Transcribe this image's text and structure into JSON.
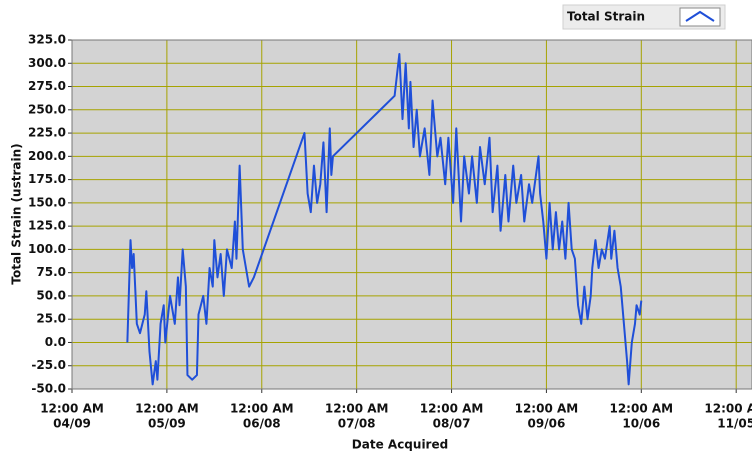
{
  "chart_data": {
    "type": "line",
    "ylabel": "Total Strain (ustrain)",
    "xlabel": "Date Acquired",
    "ylim": [
      -50,
      325
    ],
    "yticks": [
      {
        "value": -50,
        "label": "-50.0"
      },
      {
        "value": -25,
        "label": "-25.0"
      },
      {
        "value": 0,
        "label": "0.0"
      },
      {
        "value": 25,
        "label": "25.0"
      },
      {
        "value": 50,
        "label": "50.0"
      },
      {
        "value": 75,
        "label": "75.0"
      },
      {
        "value": 100,
        "label": "100.0"
      },
      {
        "value": 125,
        "label": "125.0"
      },
      {
        "value": 150,
        "label": "150.0"
      },
      {
        "value": 175,
        "label": "175.0"
      },
      {
        "value": 200,
        "label": "200.0"
      },
      {
        "value": 225,
        "label": "225.0"
      },
      {
        "value": 250,
        "label": "250.0"
      },
      {
        "value": 275,
        "label": "275.0"
      },
      {
        "value": 300,
        "label": "300.0"
      },
      {
        "value": 325,
        "label": "325.0"
      }
    ],
    "xlim": [
      "04/09 00:00",
      "11/10 00:00"
    ],
    "xticks": [
      {
        "value": "04/09 00:00",
        "label": [
          "12:00 AM",
          "04/09"
        ]
      },
      {
        "value": "05/09 00:00",
        "label": [
          "12:00 AM",
          "05/09"
        ]
      },
      {
        "value": "06/08 00:00",
        "label": [
          "12:00 AM",
          "06/08"
        ]
      },
      {
        "value": "07/08 00:00",
        "label": [
          "12:00 AM",
          "07/08"
        ]
      },
      {
        "value": "08/07 00:00",
        "label": [
          "12:00 AM",
          "08/07"
        ]
      },
      {
        "value": "09/06 00:00",
        "label": [
          "12:00 AM",
          "09/06"
        ]
      },
      {
        "value": "10/06 00:00",
        "label": [
          "12:00 AM",
          "10/06"
        ]
      },
      {
        "value": "11/05 00:00",
        "label": [
          "12:00 AM",
          "11/05"
        ]
      }
    ],
    "grid": true,
    "legend": "top-right",
    "series": [
      {
        "name": "Total Strain",
        "color": "#1f4fd8",
        "x": [
          "04/26 12:00",
          "04/27 12:00",
          "04/28 00:00",
          "04/28 12:00",
          "04/29 12:00",
          "04/30 12:00",
          "05/02 00:00",
          "05/02 12:00",
          "05/03 12:00",
          "05/04 12:00",
          "05/05 12:00",
          "05/06 00:00",
          "05/07 00:00",
          "05/08 00:00",
          "05/08 12:00",
          "05/10 00:00",
          "05/11 12:00",
          "05/12 12:00",
          "05/13 00:00",
          "05/14 00:00",
          "05/15 00:00",
          "05/15 12:00",
          "05/17 00:00",
          "05/18 12:00",
          "05/19 00:00",
          "05/20 12:00",
          "05/21 12:00",
          "05/22 12:00",
          "05/23 12:00",
          "05/24 00:00",
          "05/25 00:00",
          "05/26 00:00",
          "05/27 00:00",
          "05/28 00:00",
          "05/29 12:00",
          "05/30 12:00",
          "05/31 00:00",
          "06/01 00:00",
          "06/02 00:00",
          "06/03 00:00",
          "06/04 00:00",
          "06/05 12:00",
          "06/21 12:00",
          "06/22 12:00",
          "06/23 12:00",
          "06/24 12:00",
          "06/25 12:00",
          "06/26 12:00",
          "06/27 12:00",
          "06/28 12:00",
          "06/29 12:00",
          "06/30 00:00",
          "06/30 12:00",
          "07/20 00:00",
          "07/21 12:00",
          "07/22 12:00",
          "07/23 12:00",
          "07/24 12:00",
          "07/25 00:00",
          "07/26 00:00",
          "07/27 00:00",
          "07/28 00:00",
          "07/29 12:00",
          "07/31 00:00",
          "08/01 00:00",
          "08/02 12:00",
          "08/03 12:00",
          "08/05 00:00",
          "08/06 00:00",
          "08/07 12:00",
          "08/08 12:00",
          "08/10 00:00",
          "08/11 00:00",
          "08/12 12:00",
          "08/13 12:00",
          "08/15 00:00",
          "08/16 00:00",
          "08/17 12:00",
          "08/19 00:00",
          "08/20 00:00",
          "08/21 12:00",
          "08/22 12:00",
          "08/24 00:00",
          "08/25 00:00",
          "08/26 12:00",
          "08/27 12:00",
          "08/29 00:00",
          "08/30 00:00",
          "08/31 12:00",
          "09/01 12:00",
          "09/03 12:00",
          "09/04 00:00",
          "09/05 00:00",
          "09/06 00:00",
          "09/07 00:00",
          "09/08 00:00",
          "09/09 00:00",
          "09/10 00:00",
          "09/11 00:00",
          "09/12 00:00",
          "09/13 00:00",
          "09/14 00:00",
          "09/15 00:00",
          "09/16 00:00",
          "09/17 00:00",
          "09/18 00:00",
          "09/19 00:00",
          "09/20 00:00",
          "09/20 12:00",
          "09/21 12:00",
          "09/22 12:00",
          "09/23 12:00",
          "09/24 12:00",
          "09/26 00:00",
          "09/26 12:00",
          "09/27 12:00",
          "09/28 12:00",
          "09/29 12:00",
          "09/30 12:00",
          "10/01 12:00",
          "10/02 00:00",
          "10/03 00:00",
          "10/04 00:00",
          "10/04 12:00",
          "10/05 12:00",
          "10/06 00:00"
        ],
        "values": [
          0,
          110,
          80,
          95,
          20,
          10,
          30,
          55,
          -10,
          -45,
          -20,
          -40,
          20,
          40,
          0,
          50,
          20,
          70,
          40,
          100,
          60,
          -35,
          -40,
          -35,
          30,
          50,
          20,
          80,
          60,
          110,
          70,
          95,
          50,
          100,
          80,
          130,
          90,
          190,
          100,
          80,
          60,
          70,
          225,
          160,
          140,
          190,
          150,
          170,
          215,
          140,
          230,
          180,
          200,
          265,
          310,
          240,
          300,
          230,
          280,
          210,
          250,
          200,
          230,
          180,
          260,
          200,
          220,
          170,
          220,
          150,
          230,
          130,
          200,
          160,
          200,
          150,
          210,
          170,
          220,
          140,
          190,
          120,
          180,
          130,
          190,
          150,
          180,
          130,
          170,
          150,
          200,
          160,
          130,
          90,
          150,
          100,
          140,
          100,
          130,
          90,
          150,
          100,
          90,
          40,
          20,
          60,
          25,
          50,
          80,
          110,
          80,
          100,
          90,
          125,
          90,
          120,
          80,
          60,
          20,
          -20,
          -45,
          0,
          20,
          40,
          30,
          45
        ]
      }
    ]
  }
}
